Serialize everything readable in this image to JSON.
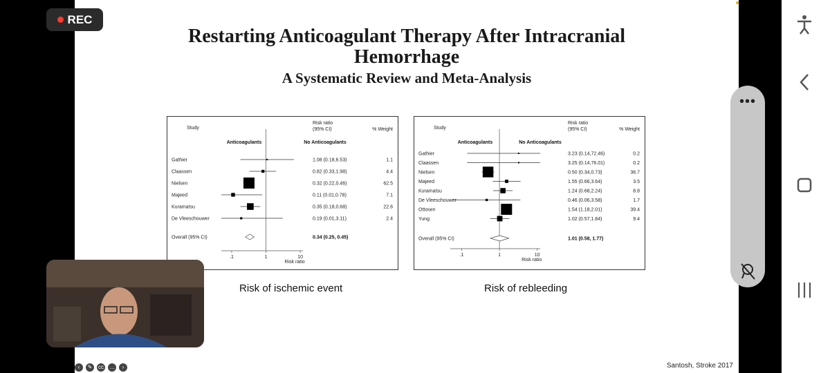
{
  "recorder": {
    "label": "REC"
  },
  "slide": {
    "title_line1": "Restarting Anticoagulant Therapy After Intracranial",
    "title_line2": "Hemorrhage",
    "subtitle": "A Systematic Review and Meta-Analysis",
    "citation": "Santosh, Stroke 2017"
  },
  "chart_data": [
    {
      "type": "forest",
      "caption": "Risk of ischemic event",
      "header_study": "Study",
      "header_rr": "Risk ratio",
      "header_ci": "(95% CI)",
      "header_weight": "% Weight",
      "left_label": "Anticoagulants",
      "right_label": "No Anticoagulants",
      "xlabel": "Risk ratio",
      "xticks": [
        ".1",
        "1",
        "10"
      ],
      "xscale": "log",
      "xlim": [
        0.05,
        12
      ],
      "studies": [
        {
          "name": "Gathier",
          "rr": 1.08,
          "lo": 0.18,
          "hi": 6.53,
          "ci_text": "1.08 (0.18,6.53)",
          "weight": "1.1"
        },
        {
          "name": "Claassen",
          "rr": 0.82,
          "lo": 0.33,
          "hi": 1.98,
          "ci_text": "0.82 (0.33,1.98)",
          "weight": "4.4"
        },
        {
          "name": "Nielsen",
          "rr": 0.32,
          "lo": 0.22,
          "hi": 0.46,
          "ci_text": "0.32 (0.22,0.46)",
          "weight": "62.5"
        },
        {
          "name": "Majeed",
          "rr": 0.11,
          "lo": 0.01,
          "hi": 0.78,
          "ci_text": "0.11 (0.01,0.78)",
          "weight": "7.1"
        },
        {
          "name": "Kuramatsu",
          "rr": 0.35,
          "lo": 0.18,
          "hi": 0.68,
          "ci_text": "0.35 (0.18,0.68)",
          "weight": "22.6"
        },
        {
          "name": "De Vleeschouwer",
          "rr": 0.19,
          "lo": 0.01,
          "hi": 3.11,
          "ci_text": "0.19 (0.01,3.11)",
          "weight": "2.4"
        }
      ],
      "overall": {
        "name": "Overall (95% CI)",
        "rr": 0.34,
        "lo": 0.25,
        "hi": 0.45,
        "ci_text": "0.34 (0.25, 0.45)"
      }
    },
    {
      "type": "forest",
      "caption": "Risk of rebleeding",
      "header_study": "Study",
      "header_rr": "Risk ratio",
      "header_ci": "(95% CI)",
      "header_weight": "% Weight",
      "left_label": "Anticoagulants",
      "right_label": "No Anticoagulants",
      "xlabel": "Risk ratio",
      "xticks": [
        ".1",
        "1",
        "10"
      ],
      "xscale": "log",
      "xlim": [
        0.05,
        12
      ],
      "studies": [
        {
          "name": "Gathier",
          "rr": 3.23,
          "lo": 0.14,
          "hi": 72.46,
          "ci_text": "3.23 (0.14,72.46)",
          "weight": "0.2"
        },
        {
          "name": "Claassen",
          "rr": 3.25,
          "lo": 0.14,
          "hi": 76.01,
          "ci_text": "3.25 (0.14,76.01)",
          "weight": "0.2"
        },
        {
          "name": "Nielsen",
          "rr": 0.5,
          "lo": 0.34,
          "hi": 0.73,
          "ci_text": "0.50 (0.34,0.73)",
          "weight": "36.7"
        },
        {
          "name": "Majeed",
          "rr": 1.55,
          "lo": 0.66,
          "hi": 3.64,
          "ci_text": "1.55 (0.66,3.64)",
          "weight": "3.5"
        },
        {
          "name": "Kuramatsu",
          "rr": 1.24,
          "lo": 0.68,
          "hi": 2.24,
          "ci_text": "1.24 (0.68,2.24)",
          "weight": "8.8"
        },
        {
          "name": "De Vleeschouwer",
          "rr": 0.46,
          "lo": 0.06,
          "hi": 3.58,
          "ci_text": "0.46 (0.06,3.58)",
          "weight": "1.7"
        },
        {
          "name": "Ottosen",
          "rr": 1.54,
          "lo": 1.18,
          "hi": 2.01,
          "ci_text": "1.54 (1.18,2.01)",
          "weight": "39.4"
        },
        {
          "name": "Yung",
          "rr": 1.02,
          "lo": 0.57,
          "hi": 1.84,
          "ci_text": "1.02 (0.57,1.84)",
          "weight": "9.4"
        }
      ],
      "overall": {
        "name": "Overall (95% CI)",
        "rr": 1.01,
        "lo": 0.58,
        "hi": 1.77,
        "ci_text": "1.01 (0.58, 1.77)"
      }
    }
  ],
  "sidebar": {
    "accessibility_icon": "accessibility-icon",
    "back_icon": "back-chevron-icon",
    "home_icon": "home-square-icon",
    "recents_icon": "recents-icon",
    "more_icon": "more-dots-icon",
    "no_pin_icon": "pin-off-icon"
  },
  "toolbar_icons": [
    "back-arrow-icon",
    "pen-icon",
    "captions-icon",
    "more-icon",
    "forward-arrow-icon"
  ]
}
